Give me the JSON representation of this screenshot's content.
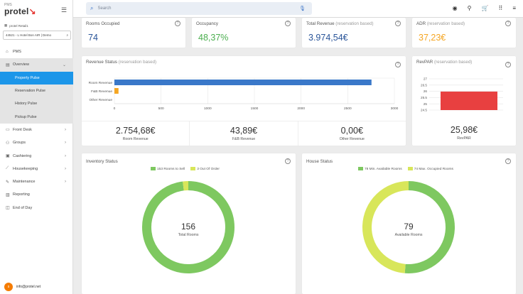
{
  "app": {
    "product": "PMS",
    "brand": "protel"
  },
  "sidebar": {
    "property": "protel Retail1",
    "hotel": "44521 - L Hotel  Bon AIR | Demo",
    "items": [
      {
        "label": "PMS",
        "icon": "home-icon"
      },
      {
        "label": "Overview",
        "icon": "overview-icon"
      },
      {
        "label": "Property Pulse"
      },
      {
        "label": "Reservation Pulse"
      },
      {
        "label": "History Pulse"
      },
      {
        "label": "Pickup Pulse"
      },
      {
        "label": "Front Desk",
        "icon": "front-desk-icon"
      },
      {
        "label": "Groups",
        "icon": "groups-icon"
      },
      {
        "label": "Cashiering",
        "icon": "cashiering-icon"
      },
      {
        "label": "Housekeeping",
        "icon": "housekeeping-icon"
      },
      {
        "label": "Maintenance",
        "icon": "maintenance-icon"
      },
      {
        "label": "Reporting",
        "icon": "reporting-icon"
      },
      {
        "label": "End of Day",
        "icon": "end-of-day-icon"
      }
    ],
    "user": {
      "initial": "s",
      "email": "info@protel.net"
    }
  },
  "search": {
    "placeholder": "Search"
  },
  "kpis": {
    "rooms_occupied": {
      "label": "Rooms Occupied",
      "value": "74",
      "color": "#2a5599"
    },
    "occupancy": {
      "label": "Occupancy",
      "value": "48,37%",
      "color": "#4caf50"
    },
    "total_revenue": {
      "label": "Total Revenue",
      "qual": "(reservation based)",
      "value": "3.974,54€",
      "color": "#2a5599"
    },
    "adr": {
      "label": "ADR",
      "qual": "(reservation based)",
      "value": "37,23€",
      "color": "#f5a623"
    }
  },
  "revenue_status": {
    "title": "Revenue Status",
    "qual": "(reservation based)",
    "room": {
      "value": "2.754,68€",
      "label": "Room Revenue"
    },
    "fb": {
      "value": "43,89€",
      "label": "F&B Revenue"
    },
    "other": {
      "value": "0,00€",
      "label": "Other Revenue"
    }
  },
  "revpar": {
    "title": "RevPAR",
    "qual": "(reservation based)",
    "value": "25,98€",
    "label": "RevPAR"
  },
  "inventory": {
    "title": "Inventory Status",
    "legend1": "153 Rooms to Sell",
    "legend2": "3 Out Of Order",
    "center_value": "156",
    "center_label": "Total Rooms"
  },
  "house": {
    "title": "House Status",
    "legend1": "78 Min. Available Rooms",
    "legend2": "74 Max. Occupied Rooms",
    "center_value": "79",
    "center_label": "Available Rooms"
  },
  "chart_data": [
    {
      "type": "bar",
      "title": "Revenue Status",
      "categories": [
        "Room Revenue",
        "F&B Revenue",
        "Other Revenue"
      ],
      "values": [
        2754.68,
        43.89,
        0
      ],
      "xlim": [
        0,
        3000
      ],
      "xticks": [
        "0",
        "500",
        "1000",
        "1500",
        "2000",
        "2500",
        "3000"
      ],
      "colors": [
        "#3a78c9",
        "#f5a623",
        "#999999"
      ],
      "orientation": "horizontal"
    },
    {
      "type": "bar",
      "title": "RevPAR",
      "categories": [
        "RevPAR"
      ],
      "values": [
        25.98
      ],
      "ylim": [
        24.5,
        27
      ],
      "yticks": [
        "27",
        "26.5",
        "26",
        "25.5",
        "25",
        "24.5"
      ],
      "colors": [
        "#e84040"
      ]
    },
    {
      "type": "pie",
      "title": "Inventory Status",
      "labels": [
        "Rooms to Sell",
        "Out Of Order"
      ],
      "values": [
        153,
        3
      ],
      "colors": [
        "#7ec860",
        "#d8e65a"
      ]
    },
    {
      "type": "pie",
      "title": "House Status",
      "labels": [
        "Min. Available Rooms",
        "Max. Occupied Rooms"
      ],
      "values": [
        78,
        74
      ],
      "colors": [
        "#7ec860",
        "#d8e65a"
      ]
    }
  ]
}
